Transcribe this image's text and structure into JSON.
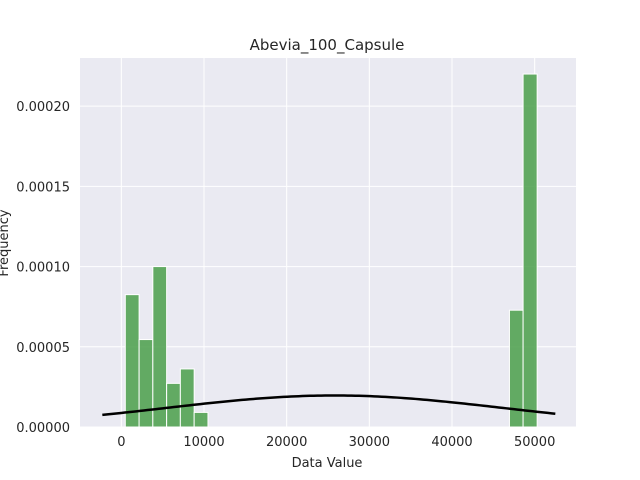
{
  "chart_data": {
    "type": "bar",
    "title": "Abevia_100_Capsule",
    "xlabel": "Data Value",
    "ylabel": "Frequency",
    "xlim": [
      -5000,
      55000
    ],
    "ylim": [
      0,
      0.00023
    ],
    "xticks": [
      {
        "value": 0,
        "label": "0"
      },
      {
        "value": 10000,
        "label": "10000"
      },
      {
        "value": 20000,
        "label": "20000"
      },
      {
        "value": 30000,
        "label": "30000"
      },
      {
        "value": 40000,
        "label": "40000"
      },
      {
        "value": 50000,
        "label": "50000"
      }
    ],
    "yticks": [
      {
        "value": 0,
        "label": "0.00000"
      },
      {
        "value": 5e-05,
        "label": "0.00005"
      },
      {
        "value": 0.0001,
        "label": "0.00010"
      },
      {
        "value": 0.00015,
        "label": "0.00015"
      },
      {
        "value": 0.0002,
        "label": "0.00020"
      }
    ],
    "bins": [
      {
        "start": 480,
        "end": 2150,
        "value": 8.25e-05
      },
      {
        "start": 2150,
        "end": 3810,
        "value": 5.45e-05
      },
      {
        "start": 3810,
        "end": 5480,
        "value": 0.0001
      },
      {
        "start": 5480,
        "end": 7140,
        "value": 2.72e-05
      },
      {
        "start": 7140,
        "end": 8810,
        "value": 3.62e-05
      },
      {
        "start": 8810,
        "end": 10480,
        "value": 9.1e-06
      },
      {
        "start": 46950,
        "end": 48600,
        "value": 7.28e-05
      },
      {
        "start": 48600,
        "end": 50300,
        "value": 0.00022
      }
    ],
    "fit_curve": {
      "type": "normal",
      "mean": 25800,
      "std": 20300,
      "x_range": [
        -2300,
        52500
      ]
    },
    "grid": true,
    "legend": "none",
    "colors": {
      "bar": "#4a9f4a",
      "bar_edge": "#ffffff",
      "curve": "#000000",
      "plot_bg": "#eaeaf2",
      "grid": "#ffffff"
    }
  }
}
